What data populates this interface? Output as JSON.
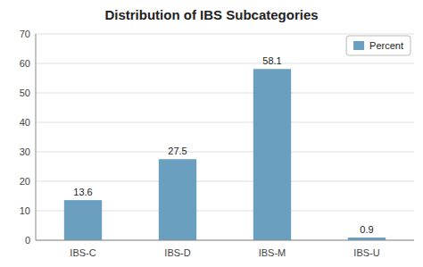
{
  "chart_data": {
    "type": "bar",
    "title": "Distribution of IBS Subcategories",
    "categories": [
      "IBS-C",
      "IBS-D",
      "IBS-M",
      "IBS-U"
    ],
    "series": [
      {
        "name": "Percent",
        "color": "#6a9fc0",
        "values": [
          13.6,
          27.5,
          58.1,
          0.9
        ]
      }
    ],
    "ylim": [
      0,
      70
    ],
    "yticks": [
      0,
      10,
      20,
      30,
      40,
      50,
      60,
      70
    ],
    "grid": true,
    "legend": "upper right",
    "data_labels": true
  }
}
